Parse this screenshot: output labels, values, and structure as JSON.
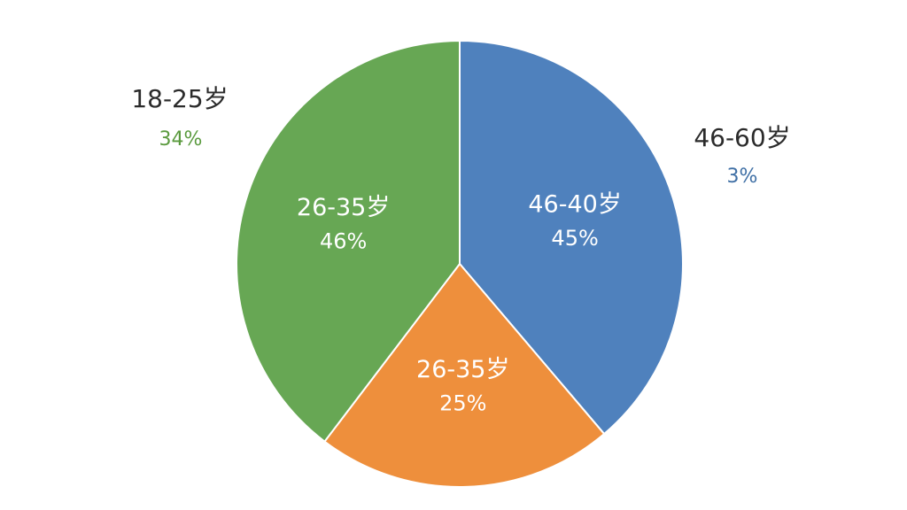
{
  "chart_data": {
    "type": "pie",
    "categories": [
      "46-40岁",
      "26-35岁",
      "26-35岁"
    ],
    "values": [
      45,
      25,
      46
    ],
    "value_labels": [
      "45%",
      "25%",
      "46%"
    ],
    "colors": [
      "#4f81bd",
      "#ee8f3c",
      "#67a754"
    ],
    "annotations": [
      {
        "label": "18-25岁",
        "text": "34%"
      },
      {
        "label": "46-60岁",
        "text": "3%"
      }
    ]
  }
}
